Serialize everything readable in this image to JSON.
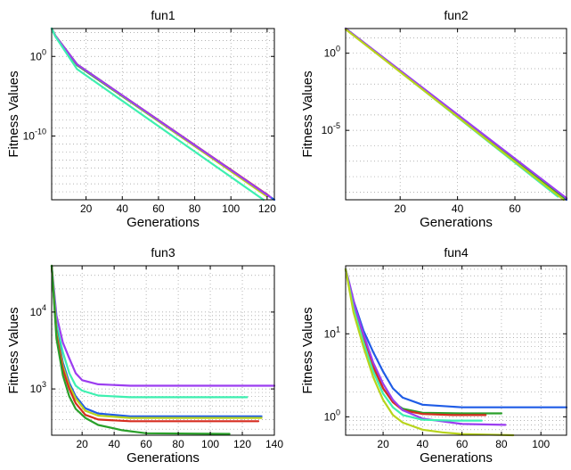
{
  "chart_data": [
    {
      "type": "line",
      "title": "fun1",
      "xlabel": "Generations",
      "ylabel": "Fitness Values",
      "yscale": "log",
      "xlim": [
        1,
        124
      ],
      "ylim_exp": [
        -18,
        3.5
      ],
      "xticks": [
        20,
        40,
        60,
        80,
        100,
        120
      ],
      "yticks_exp": [
        0,
        -10
      ],
      "grid": true,
      "series": [
        {
          "color": "#1f5ce6",
          "x": [
            1,
            3,
            15,
            124
          ],
          "y_exp": [
            3.5,
            2.6,
            -1.0,
            -18.0
          ]
        },
        {
          "color": "#d62d20",
          "x": [
            1,
            3,
            15,
            121
          ],
          "y_exp": [
            3.5,
            2.6,
            -1.0,
            -17.5
          ]
        },
        {
          "color": "#2aa02a",
          "x": [
            1,
            3,
            15,
            118
          ],
          "y_exp": [
            3.5,
            2.6,
            -1.1,
            -17.2
          ]
        },
        {
          "color": "#b8d41c",
          "x": [
            1,
            3,
            15,
            120
          ],
          "y_exp": [
            3.5,
            2.6,
            -1.0,
            -17.6
          ]
        },
        {
          "color": "#9b3df0",
          "x": [
            1,
            3,
            15,
            122
          ],
          "y_exp": [
            3.5,
            2.6,
            -1.0,
            -17.7
          ]
        },
        {
          "color": "#3df0b0",
          "x": [
            1,
            3,
            15,
            118
          ],
          "y_exp": [
            3.5,
            2.5,
            -1.6,
            -18.0
          ]
        }
      ]
    },
    {
      "type": "line",
      "title": "fun2",
      "xlabel": "Generations",
      "ylabel": "Fitness Values",
      "yscale": "log",
      "xlim": [
        1,
        78
      ],
      "ylim_exp": [
        -9.5,
        1.6
      ],
      "xticks": [
        20,
        40,
        60
      ],
      "yticks_exp": [
        0,
        -5
      ],
      "grid": true,
      "series": [
        {
          "color": "#1f5ce6",
          "x": [
            1,
            78
          ],
          "y_exp": [
            1.6,
            -9.5
          ]
        },
        {
          "color": "#d62d20",
          "x": [
            1,
            76
          ],
          "y_exp": [
            1.6,
            -9.3
          ]
        },
        {
          "color": "#2aa02a",
          "x": [
            1,
            77
          ],
          "y_exp": [
            1.6,
            -9.4
          ]
        },
        {
          "color": "#3df0b0",
          "x": [
            1,
            75
          ],
          "y_exp": [
            1.6,
            -9.3
          ]
        },
        {
          "color": "#9b3df0",
          "x": [
            1,
            78
          ],
          "y_exp": [
            1.6,
            -9.4
          ]
        },
        {
          "color": "#b8d41c",
          "x": [
            1,
            77
          ],
          "y_exp": [
            1.55,
            -9.5
          ]
        }
      ]
    },
    {
      "type": "line",
      "title": "fun3",
      "xlabel": "Generations",
      "ylabel": "Fitness Values",
      "yscale": "log",
      "xlim": [
        1,
        140
      ],
      "ylim": [
        250,
        40000
      ],
      "xticks": [
        20,
        40,
        60,
        80,
        100,
        120,
        140
      ],
      "yticks_exp": [
        3,
        4
      ],
      "grid": true,
      "series": [
        {
          "color": "#9b3df0",
          "x": [
            1,
            4,
            8,
            12,
            16,
            20,
            30,
            50,
            140
          ],
          "y": [
            40000,
            9000,
            4000,
            2500,
            1600,
            1300,
            1150,
            1100,
            1100
          ]
        },
        {
          "color": "#3df0b0",
          "x": [
            1,
            4,
            8,
            12,
            16,
            20,
            30,
            50,
            123
          ],
          "y": [
            40000,
            7000,
            3000,
            1600,
            1100,
            950,
            820,
            780,
            780
          ]
        },
        {
          "color": "#1f5ce6",
          "x": [
            1,
            4,
            8,
            12,
            16,
            22,
            30,
            50,
            132
          ],
          "y": [
            40000,
            6000,
            2200,
            1200,
            800,
            560,
            480,
            440,
            440
          ]
        },
        {
          "color": "#b8d41c",
          "x": [
            1,
            4,
            8,
            12,
            16,
            22,
            30,
            50,
            132
          ],
          "y": [
            40000,
            5500,
            2000,
            1100,
            750,
            520,
            450,
            420,
            420
          ]
        },
        {
          "color": "#d62d20",
          "x": [
            1,
            4,
            8,
            12,
            16,
            22,
            30,
            50,
            130
          ],
          "y": [
            40000,
            5000,
            1800,
            1000,
            650,
            460,
            400,
            380,
            380
          ]
        },
        {
          "color": "#2aa02a",
          "x": [
            1,
            4,
            8,
            12,
            16,
            22,
            30,
            45,
            60,
            112
          ],
          "y": [
            40000,
            4500,
            1500,
            800,
            550,
            420,
            340,
            290,
            265,
            260
          ]
        }
      ]
    },
    {
      "type": "line",
      "title": "fun4",
      "xlabel": "Generations",
      "ylabel": "Fitness Values",
      "yscale": "log",
      "xlim": [
        1,
        113
      ],
      "ylim": [
        0.6,
        66
      ],
      "xticks": [
        20,
        40,
        60,
        80,
        100
      ],
      "yticks_exp": [
        0,
        1
      ],
      "grid": true,
      "series": [
        {
          "color": "#1f5ce6",
          "x": [
            1,
            5,
            10,
            15,
            20,
            25,
            30,
            40,
            60,
            113
          ],
          "y": [
            60,
            25,
            11,
            6,
            3.5,
            2.2,
            1.7,
            1.4,
            1.3,
            1.3
          ]
        },
        {
          "color": "#2aa02a",
          "x": [
            1,
            5,
            10,
            15,
            20,
            25,
            30,
            40,
            60,
            80
          ],
          "y": [
            60,
            22,
            9,
            4,
            2.2,
            1.5,
            1.25,
            1.12,
            1.1,
            1.1
          ]
        },
        {
          "color": "#d62d20",
          "x": [
            1,
            5,
            10,
            15,
            20,
            25,
            30,
            40,
            55,
            72
          ],
          "y": [
            60,
            22,
            9,
            4,
            2.2,
            1.5,
            1.2,
            1.08,
            1.05,
            1.05
          ]
        },
        {
          "color": "#9b3df0",
          "x": [
            1,
            3,
            6,
            10,
            15,
            20,
            25,
            30,
            40,
            60,
            82
          ],
          "y": [
            60,
            40,
            20,
            10,
            4.5,
            2.5,
            1.6,
            1.2,
            0.95,
            0.82,
            0.8
          ]
        },
        {
          "color": "#3df0b0",
          "x": [
            1,
            5,
            10,
            15,
            20,
            25,
            30,
            40,
            55,
            70
          ],
          "y": [
            60,
            20,
            8,
            3.5,
            1.9,
            1.3,
            1.05,
            0.92,
            0.9,
            0.9
          ]
        },
        {
          "color": "#b8d41c",
          "x": [
            1,
            5,
            10,
            15,
            20,
            25,
            30,
            40,
            50,
            60,
            86
          ],
          "y": [
            60,
            18,
            7,
            3,
            1.6,
            1.05,
            0.85,
            0.7,
            0.65,
            0.62,
            0.6
          ]
        }
      ]
    }
  ]
}
